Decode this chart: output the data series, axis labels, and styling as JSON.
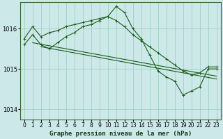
{
  "title": "Graphe pression niveau de la mer (hPa)",
  "background_color": "#cce8e8",
  "grid_color": "#99ccbb",
  "line_color": "#1a5c1a",
  "ylim": [
    1013.75,
    1016.65
  ],
  "yticks": [
    1014,
    1015,
    1016
  ],
  "xlim": [
    -0.5,
    23.5
  ],
  "xticks": [
    0,
    1,
    2,
    3,
    4,
    5,
    6,
    7,
    8,
    9,
    10,
    11,
    12,
    13,
    14,
    15,
    16,
    17,
    18,
    19,
    20,
    21,
    22,
    23
  ],
  "series_upper": {
    "x": [
      0,
      1,
      2,
      3,
      4,
      5,
      6,
      7,
      8,
      9,
      10,
      11,
      12,
      13,
      14,
      15,
      16,
      17,
      18,
      19,
      20,
      21,
      22,
      23
    ],
    "y": [
      1015.75,
      1016.05,
      1015.8,
      1015.9,
      1015.95,
      1016.05,
      1016.1,
      1016.15,
      1016.2,
      1016.25,
      1016.3,
      1016.2,
      1016.05,
      1015.85,
      1015.7,
      1015.55,
      1015.4,
      1015.25,
      1015.1,
      1014.95,
      1014.85,
      1014.9,
      1015.05,
      1015.05
    ]
  },
  "series_main": {
    "x": [
      0,
      1,
      2,
      3,
      4,
      5,
      6,
      7,
      8,
      9,
      10,
      11,
      12,
      13,
      14,
      15,
      16,
      17,
      18,
      19,
      20,
      21,
      22,
      23
    ],
    "y": [
      1015.6,
      1015.85,
      1015.6,
      1015.5,
      1015.65,
      1015.8,
      1015.9,
      1016.05,
      1016.1,
      1016.2,
      1016.3,
      1016.55,
      1016.4,
      1016.0,
      1015.75,
      1015.35,
      1014.95,
      1014.8,
      1014.7,
      1014.35,
      1014.45,
      1014.55,
      1015.0,
      1015.0
    ]
  },
  "series_line1": {
    "x": [
      1,
      23
    ],
    "y": [
      1015.65,
      1014.82
    ]
  },
  "series_line2": {
    "x": [
      2,
      23
    ],
    "y": [
      1015.55,
      1014.75
    ]
  },
  "tick_fontsize": 5.5,
  "label_fontsize": 6.5
}
